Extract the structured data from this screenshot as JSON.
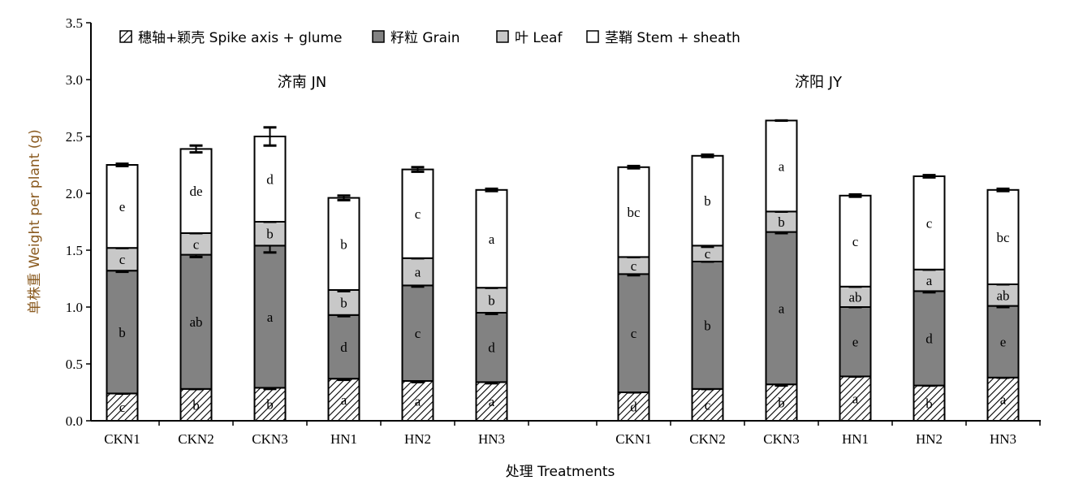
{
  "chart_data": {
    "type": "bar",
    "stacked": true,
    "ylabel": "单株重 Weight per plant (g)",
    "xlabel": "处理 Treatments",
    "ylim": [
      0,
      3.5
    ],
    "yticks": [
      "0.0",
      "0.5",
      "1.0",
      "1.5",
      "2.0",
      "2.5",
      "3.0",
      "3.5"
    ],
    "colors": {
      "spike": "#ffffff",
      "grain": "#828282",
      "leaf": "#c8c8c8",
      "stem": "#ffffff",
      "stroke": "#000000"
    },
    "legend": [
      {
        "key": "spike",
        "label": "穗轴+颖壳 Spike axis + glume"
      },
      {
        "key": "grain",
        "label": "籽粒 Grain"
      },
      {
        "key": "leaf",
        "label": "叶 Leaf"
      },
      {
        "key": "stem",
        "label": "茎鞘 Stem + sheath"
      }
    ],
    "groups": [
      {
        "title": "济南 JN",
        "categories": [
          "CKN1",
          "CKN2",
          "CKN3",
          "HN1",
          "HN2",
          "HN3"
        ],
        "series": [
          {
            "name": "穗轴+颖壳 Spike axis + glume",
            "key": "spike",
            "values": [
              0.24,
              0.28,
              0.29,
              0.37,
              0.35,
              0.34
            ],
            "errors": [
              0,
              0,
              0.01,
              0.01,
              0.01,
              0.01
            ],
            "labels": [
              "c",
              "b",
              "b",
              "a",
              "a",
              "a"
            ]
          },
          {
            "name": "籽粒 Grain",
            "key": "grain",
            "values": [
              1.08,
              1.18,
              1.25,
              0.56,
              0.84,
              0.61
            ],
            "errors": [
              0.01,
              0.02,
              0.06,
              0.01,
              0.01,
              0.01
            ],
            "labels": [
              "b",
              "ab",
              "a",
              "d",
              "c",
              "d"
            ]
          },
          {
            "name": "叶 Leaf",
            "key": "leaf",
            "values": [
              0.2,
              0.19,
              0.21,
              0.22,
              0.24,
              0.22
            ],
            "errors": [
              0,
              0,
              0,
              0.01,
              0,
              0
            ],
            "labels": [
              "c",
              "c",
              "b",
              "b",
              "a",
              "b"
            ]
          },
          {
            "name": "茎鞘 Stem + sheath",
            "key": "stem",
            "values": [
              0.73,
              0.74,
              0.75,
              0.81,
              0.78,
              0.86
            ],
            "errors": [
              0.01,
              0.03,
              0.08,
              0.02,
              0.02,
              0.01
            ],
            "labels": [
              "e",
              "de",
              "d",
              "b",
              "c",
              "a"
            ]
          }
        ]
      },
      {
        "title": "济阳 JY",
        "categories": [
          "CKN1",
          "CKN2",
          "CKN3",
          "HN1",
          "HN2",
          "HN3"
        ],
        "series": [
          {
            "name": "穗轴+颖壳 Spike axis + glume",
            "key": "spike",
            "values": [
              0.25,
              0.28,
              0.32,
              0.39,
              0.31,
              0.38
            ],
            "errors": [
              0,
              0,
              0.01,
              0,
              0,
              0
            ],
            "labels": [
              "d",
              "c",
              "b",
              "a",
              "b",
              "a"
            ]
          },
          {
            "name": "籽粒 Grain",
            "key": "grain",
            "values": [
              1.04,
              1.12,
              1.34,
              0.61,
              0.83,
              0.63
            ],
            "errors": [
              0.01,
              0,
              0.01,
              0,
              0.01,
              0.01
            ],
            "labels": [
              "c",
              "b",
              "a",
              "e",
              "d",
              "e"
            ]
          },
          {
            "name": "叶 Leaf",
            "key": "leaf",
            "values": [
              0.15,
              0.14,
              0.18,
              0.18,
              0.19,
              0.19
            ],
            "errors": [
              0,
              0.01,
              0,
              0,
              0,
              0
            ],
            "labels": [
              "c",
              "c",
              "b",
              "ab",
              "a",
              "ab"
            ]
          },
          {
            "name": "茎鞘 Stem + sheath",
            "key": "stem",
            "values": [
              0.79,
              0.79,
              0.8,
              0.8,
              0.82,
              0.83
            ],
            "errors": [
              0.01,
              0.01,
              0,
              0.01,
              0.01,
              0.01
            ],
            "labels": [
              "bc",
              "b",
              "a",
              "c",
              "c",
              "bc"
            ]
          }
        ]
      }
    ]
  }
}
